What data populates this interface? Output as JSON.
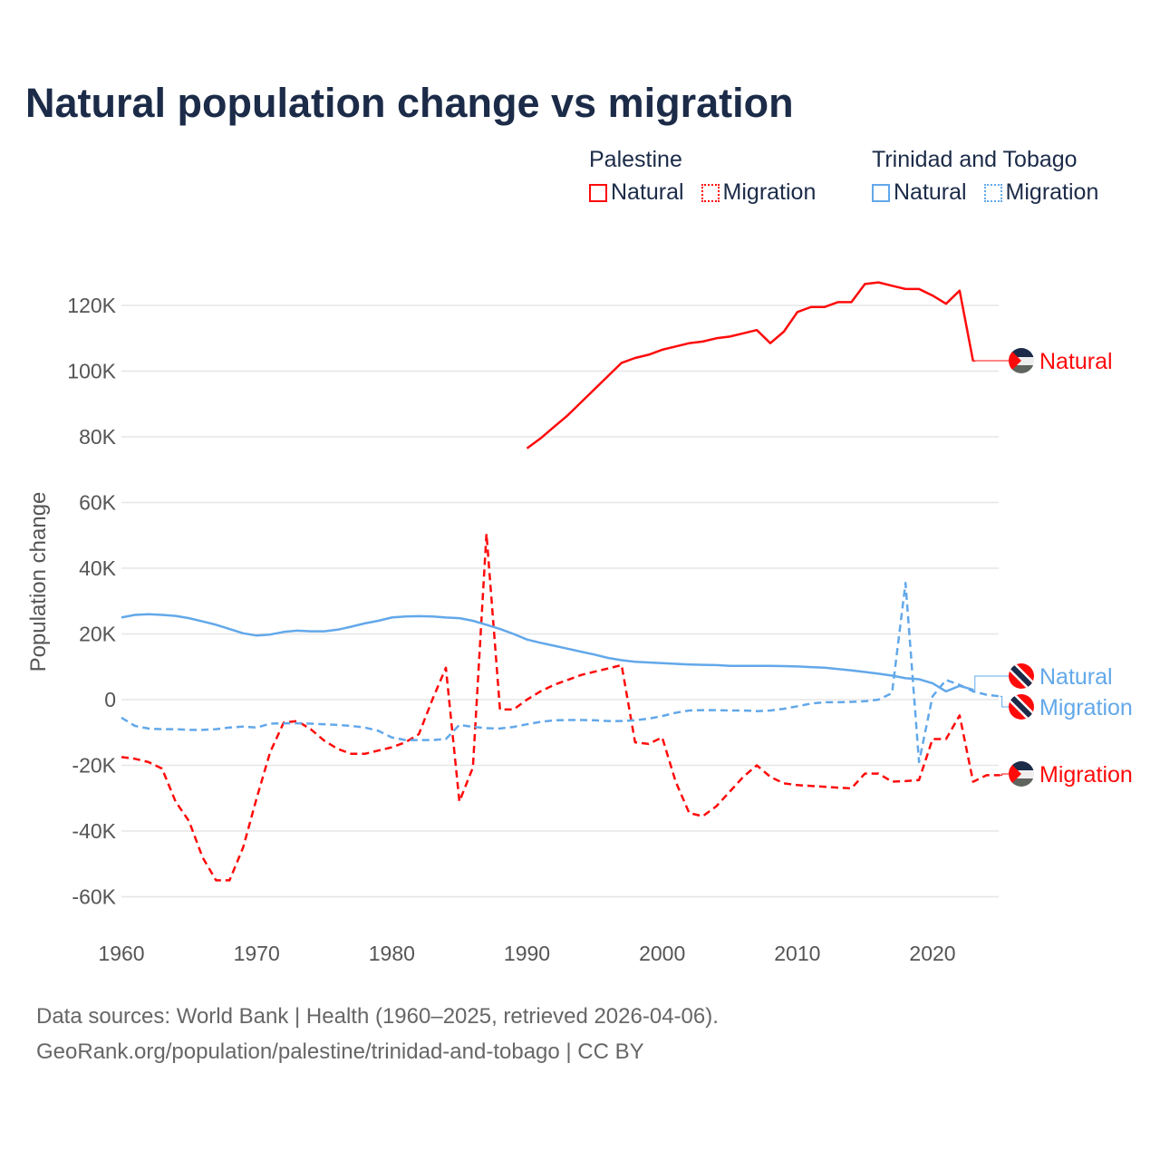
{
  "title": "Natural population change vs migration",
  "legend": {
    "groups": [
      {
        "name": "Palestine",
        "color": "#ff0a0a",
        "items": [
          "Natural",
          "Migration"
        ]
      },
      {
        "name": "Trinidad and Tobago",
        "color": "#62a8ea",
        "items": [
          "Natural",
          "Migration"
        ]
      }
    ]
  },
  "chart_data": {
    "type": "line",
    "title": "Natural population change vs migration",
    "xlabel": "",
    "ylabel": "Population change",
    "xlim": [
      1960,
      2025
    ],
    "ylim": [
      -70000,
      130000
    ],
    "xticks": [
      1960,
      1970,
      1980,
      1990,
      2000,
      2010,
      2020
    ],
    "xtick_labels": [
      "1960",
      "1970",
      "1980",
      "1990",
      "2000",
      "2010",
      "2020"
    ],
    "yticks": [
      -60000,
      -40000,
      -20000,
      0,
      20000,
      40000,
      60000,
      80000,
      100000,
      120000
    ],
    "ytick_labels": [
      "-60K",
      "-40K",
      "-20K",
      "0",
      "20K",
      "40K",
      "60K",
      "80K",
      "100K",
      "120K"
    ],
    "grid": true,
    "legend_position": "top-right",
    "series": [
      {
        "name": "Palestine Natural",
        "label": "Natural",
        "country": "palestine",
        "color": "#ff0a0a",
        "dash": false,
        "start": 1990,
        "values": [
          76500,
          79500,
          83000,
          86500,
          90500,
          94500,
          98500,
          102500,
          104000,
          105000,
          106500,
          107500,
          108500,
          109000,
          110000,
          110500,
          111500,
          112500,
          108500,
          112000,
          118000,
          119500,
          119500,
          121000,
          121000,
          126500,
          127000,
          126000,
          125000,
          125000,
          123000,
          120500,
          124500,
          103000
        ]
      },
      {
        "name": "Palestine Migration",
        "label": "Migration",
        "country": "palestine",
        "color": "#ff0a0a",
        "dash": true,
        "start": 1960,
        "values": [
          -17500,
          -18000,
          -19000,
          -21000,
          -31000,
          -37000,
          -48000,
          -55000,
          -55000,
          -45000,
          -30000,
          -16000,
          -7000,
          -6500,
          -9000,
          -12500,
          -15000,
          -16500,
          -16500,
          -15500,
          -14500,
          -13000,
          -10500,
          0,
          9700,
          -31000,
          -20700,
          50500,
          -3000,
          -3000,
          0,
          2500,
          4500,
          6000,
          7500,
          8500,
          9500,
          10500,
          -13000,
          -13500,
          -11500,
          -25000,
          -34500,
          -35500,
          -32500,
          -28000,
          -23500,
          -20000,
          -23500,
          -25500,
          -26000,
          -26300,
          -26500,
          -26800,
          -27000,
          -22500,
          -22500,
          -25000,
          -24800,
          -24500,
          -12000,
          -12000,
          -4800,
          -25000,
          -23000,
          -23000
        ]
      },
      {
        "name": "Trinidad and Tobago Natural",
        "label": "Natural",
        "country": "trinidad",
        "color": "#62a8ea",
        "dash": false,
        "start": 1960,
        "values": [
          25000,
          25800,
          26000,
          25800,
          25500,
          24800,
          23800,
          22800,
          21500,
          20200,
          19500,
          19800,
          20600,
          21000,
          20800,
          20800,
          21300,
          22200,
          23200,
          24000,
          25000,
          25300,
          25400,
          25300,
          25000,
          24800,
          24000,
          22800,
          21500,
          20000,
          18300,
          17300,
          16400,
          15500,
          14600,
          13700,
          12700,
          12000,
          11500,
          11300,
          11100,
          10900,
          10700,
          10600,
          10500,
          10300,
          10300,
          10300,
          10300,
          10200,
          10100,
          9900,
          9700,
          9300,
          8900,
          8400,
          7900,
          7300,
          6500,
          6200,
          5000,
          2500,
          4200,
          3000
        ]
      },
      {
        "name": "Trinidad and Tobago Migration",
        "label": "Migration",
        "country": "trinidad",
        "color": "#62a8ea",
        "dash": true,
        "start": 1960,
        "values": [
          -5500,
          -8000,
          -8800,
          -9000,
          -9000,
          -9200,
          -9200,
          -9000,
          -8500,
          -8200,
          -8500,
          -7300,
          -7200,
          -7200,
          -7300,
          -7500,
          -7700,
          -8000,
          -8500,
          -9500,
          -11500,
          -12300,
          -12300,
          -12300,
          -12000,
          -7700,
          -8300,
          -8700,
          -8800,
          -8300,
          -7500,
          -6800,
          -6300,
          -6200,
          -6200,
          -6300,
          -6500,
          -6500,
          -6300,
          -5800,
          -5000,
          -4000,
          -3300,
          -3200,
          -3200,
          -3300,
          -3300,
          -3500,
          -3300,
          -2800,
          -2000,
          -1200,
          -800,
          -800,
          -700,
          -500,
          0,
          2000,
          35500,
          -19000,
          1000,
          6000,
          4500,
          2500,
          1500,
          1000
        ]
      }
    ]
  },
  "footer": {
    "line1": "Data sources: World Bank | Health (1960–2025, retrieved 2026-04-06).",
    "line2": "GeoRank.org/population/palestine/trinidad-and-tobago | CC BY"
  }
}
